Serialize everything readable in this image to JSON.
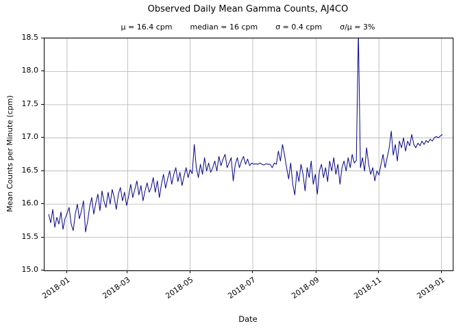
{
  "chart_data": {
    "type": "line",
    "title": "Observed Daily Mean Gamma Counts, AJ4CO",
    "stats": [
      "μ = 16.4 cpm",
      "median = 16 cpm",
      "σ = 0.4 cpm",
      "σ/μ = 3%"
    ],
    "xlabel": "Date",
    "ylabel": "Mean Counts per Minute (cpm)",
    "line_color": "#00008b",
    "grid_color": "#b0b0b0",
    "grid": true,
    "legend": "none",
    "ylim": [
      15.0,
      18.5
    ],
    "yticks": [
      {
        "v": 15.0,
        "label": "15.0"
      },
      {
        "v": 15.5,
        "label": "15.5"
      },
      {
        "v": 16.0,
        "label": "16.0"
      },
      {
        "v": 16.5,
        "label": "16.5"
      },
      {
        "v": 17.0,
        "label": "17.0"
      },
      {
        "v": 17.5,
        "label": "17.5"
      },
      {
        "v": 18.0,
        "label": "18.0"
      },
      {
        "v": 18.5,
        "label": "18.5"
      }
    ],
    "x_domain_days": [
      0,
      398
    ],
    "xticks": [
      {
        "day": 22,
        "label": "2018-01"
      },
      {
        "day": 81,
        "label": "2018-03"
      },
      {
        "day": 142,
        "label": "2018-05"
      },
      {
        "day": 203,
        "label": "2018-07"
      },
      {
        "day": 265,
        "label": "2018-09"
      },
      {
        "day": 326,
        "label": "2018-11"
      },
      {
        "day": 387,
        "label": "2019-01"
      }
    ],
    "series": [
      {
        "name": "daily_mean_cpm",
        "x_start_day": 4,
        "x_step_days": 2,
        "values": [
          15.85,
          15.72,
          15.92,
          15.65,
          15.8,
          15.7,
          15.88,
          15.62,
          15.78,
          15.86,
          15.95,
          15.7,
          15.6,
          15.85,
          16.0,
          15.78,
          15.9,
          16.05,
          15.58,
          15.74,
          15.96,
          16.1,
          15.85,
          16.02,
          16.15,
          15.9,
          16.2,
          16.04,
          15.95,
          16.18,
          16.0,
          16.22,
          16.1,
          15.92,
          16.15,
          16.25,
          16.05,
          16.18,
          15.98,
          16.12,
          16.3,
          16.1,
          16.22,
          16.35,
          16.14,
          16.28,
          16.05,
          16.2,
          16.32,
          16.18,
          16.25,
          16.4,
          16.18,
          16.35,
          16.1,
          16.3,
          16.45,
          16.24,
          16.38,
          16.5,
          16.3,
          16.45,
          16.55,
          16.34,
          16.48,
          16.28,
          16.42,
          16.55,
          16.4,
          16.52,
          16.46,
          16.9,
          16.55,
          16.4,
          16.6,
          16.45,
          16.7,
          16.5,
          16.62,
          16.48,
          16.55,
          16.65,
          16.5,
          16.72,
          16.58,
          16.68,
          16.75,
          16.55,
          16.62,
          16.7,
          16.35,
          16.6,
          16.7,
          16.55,
          16.65,
          16.72,
          16.6,
          16.68,
          16.58,
          16.62,
          16.6,
          16.61,
          16.6,
          16.62,
          16.6,
          16.59,
          16.61,
          16.6,
          16.6,
          16.55,
          16.62,
          16.6,
          16.8,
          16.65,
          16.9,
          16.74,
          16.55,
          16.38,
          16.62,
          16.3,
          16.14,
          16.5,
          16.34,
          16.6,
          16.45,
          16.2,
          16.55,
          16.4,
          16.65,
          16.3,
          16.45,
          16.15,
          16.5,
          16.6,
          16.4,
          16.55,
          16.34,
          16.65,
          16.5,
          16.7,
          16.45,
          16.6,
          16.3,
          16.55,
          16.65,
          16.5,
          16.7,
          16.55,
          16.75,
          16.62,
          16.66,
          18.6,
          16.55,
          16.7,
          16.5,
          16.85,
          16.6,
          16.45,
          16.55,
          16.35,
          16.5,
          16.44,
          16.6,
          16.75,
          16.55,
          16.7,
          16.85,
          17.1,
          16.74,
          16.9,
          16.65,
          16.95,
          16.85,
          17.0,
          16.8,
          16.95,
          16.88,
          17.05,
          16.9,
          16.85,
          16.92,
          16.88,
          16.95,
          16.9,
          16.96,
          16.93,
          16.98,
          16.95,
          17.0,
          17.02,
          17.0,
          17.03,
          17.05
        ]
      }
    ]
  }
}
